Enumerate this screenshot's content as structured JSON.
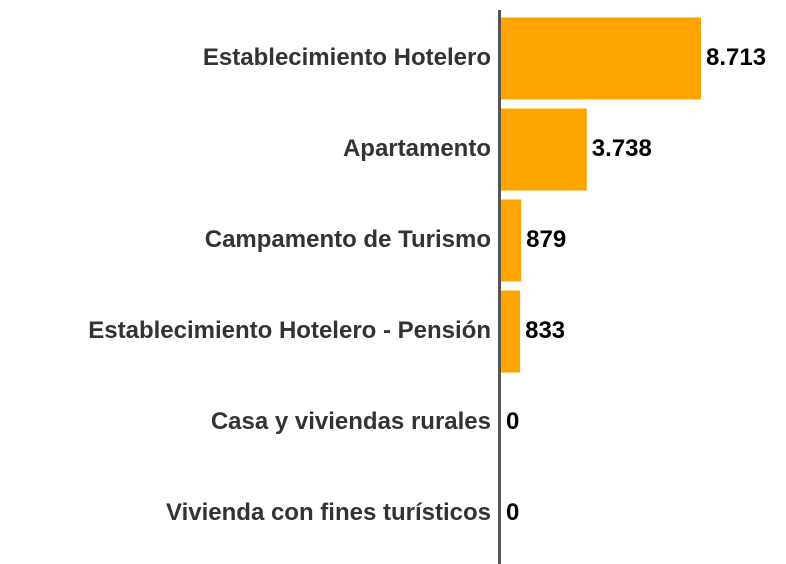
{
  "chart_data": {
    "type": "barh",
    "categories": [
      "Establecimiento Hotelero",
      "Apartamento",
      "Campamento de Turismo",
      "Establecimiento Hotelero - Pensión",
      "Casa y viviendas rurales",
      "Vivienda con fines turísticos"
    ],
    "values": [
      8713,
      3738,
      879,
      833,
      0,
      0
    ],
    "value_labels": [
      "8.713",
      "3.738",
      "879",
      "833",
      "0",
      "0"
    ],
    "color": "#ffa500"
  }
}
